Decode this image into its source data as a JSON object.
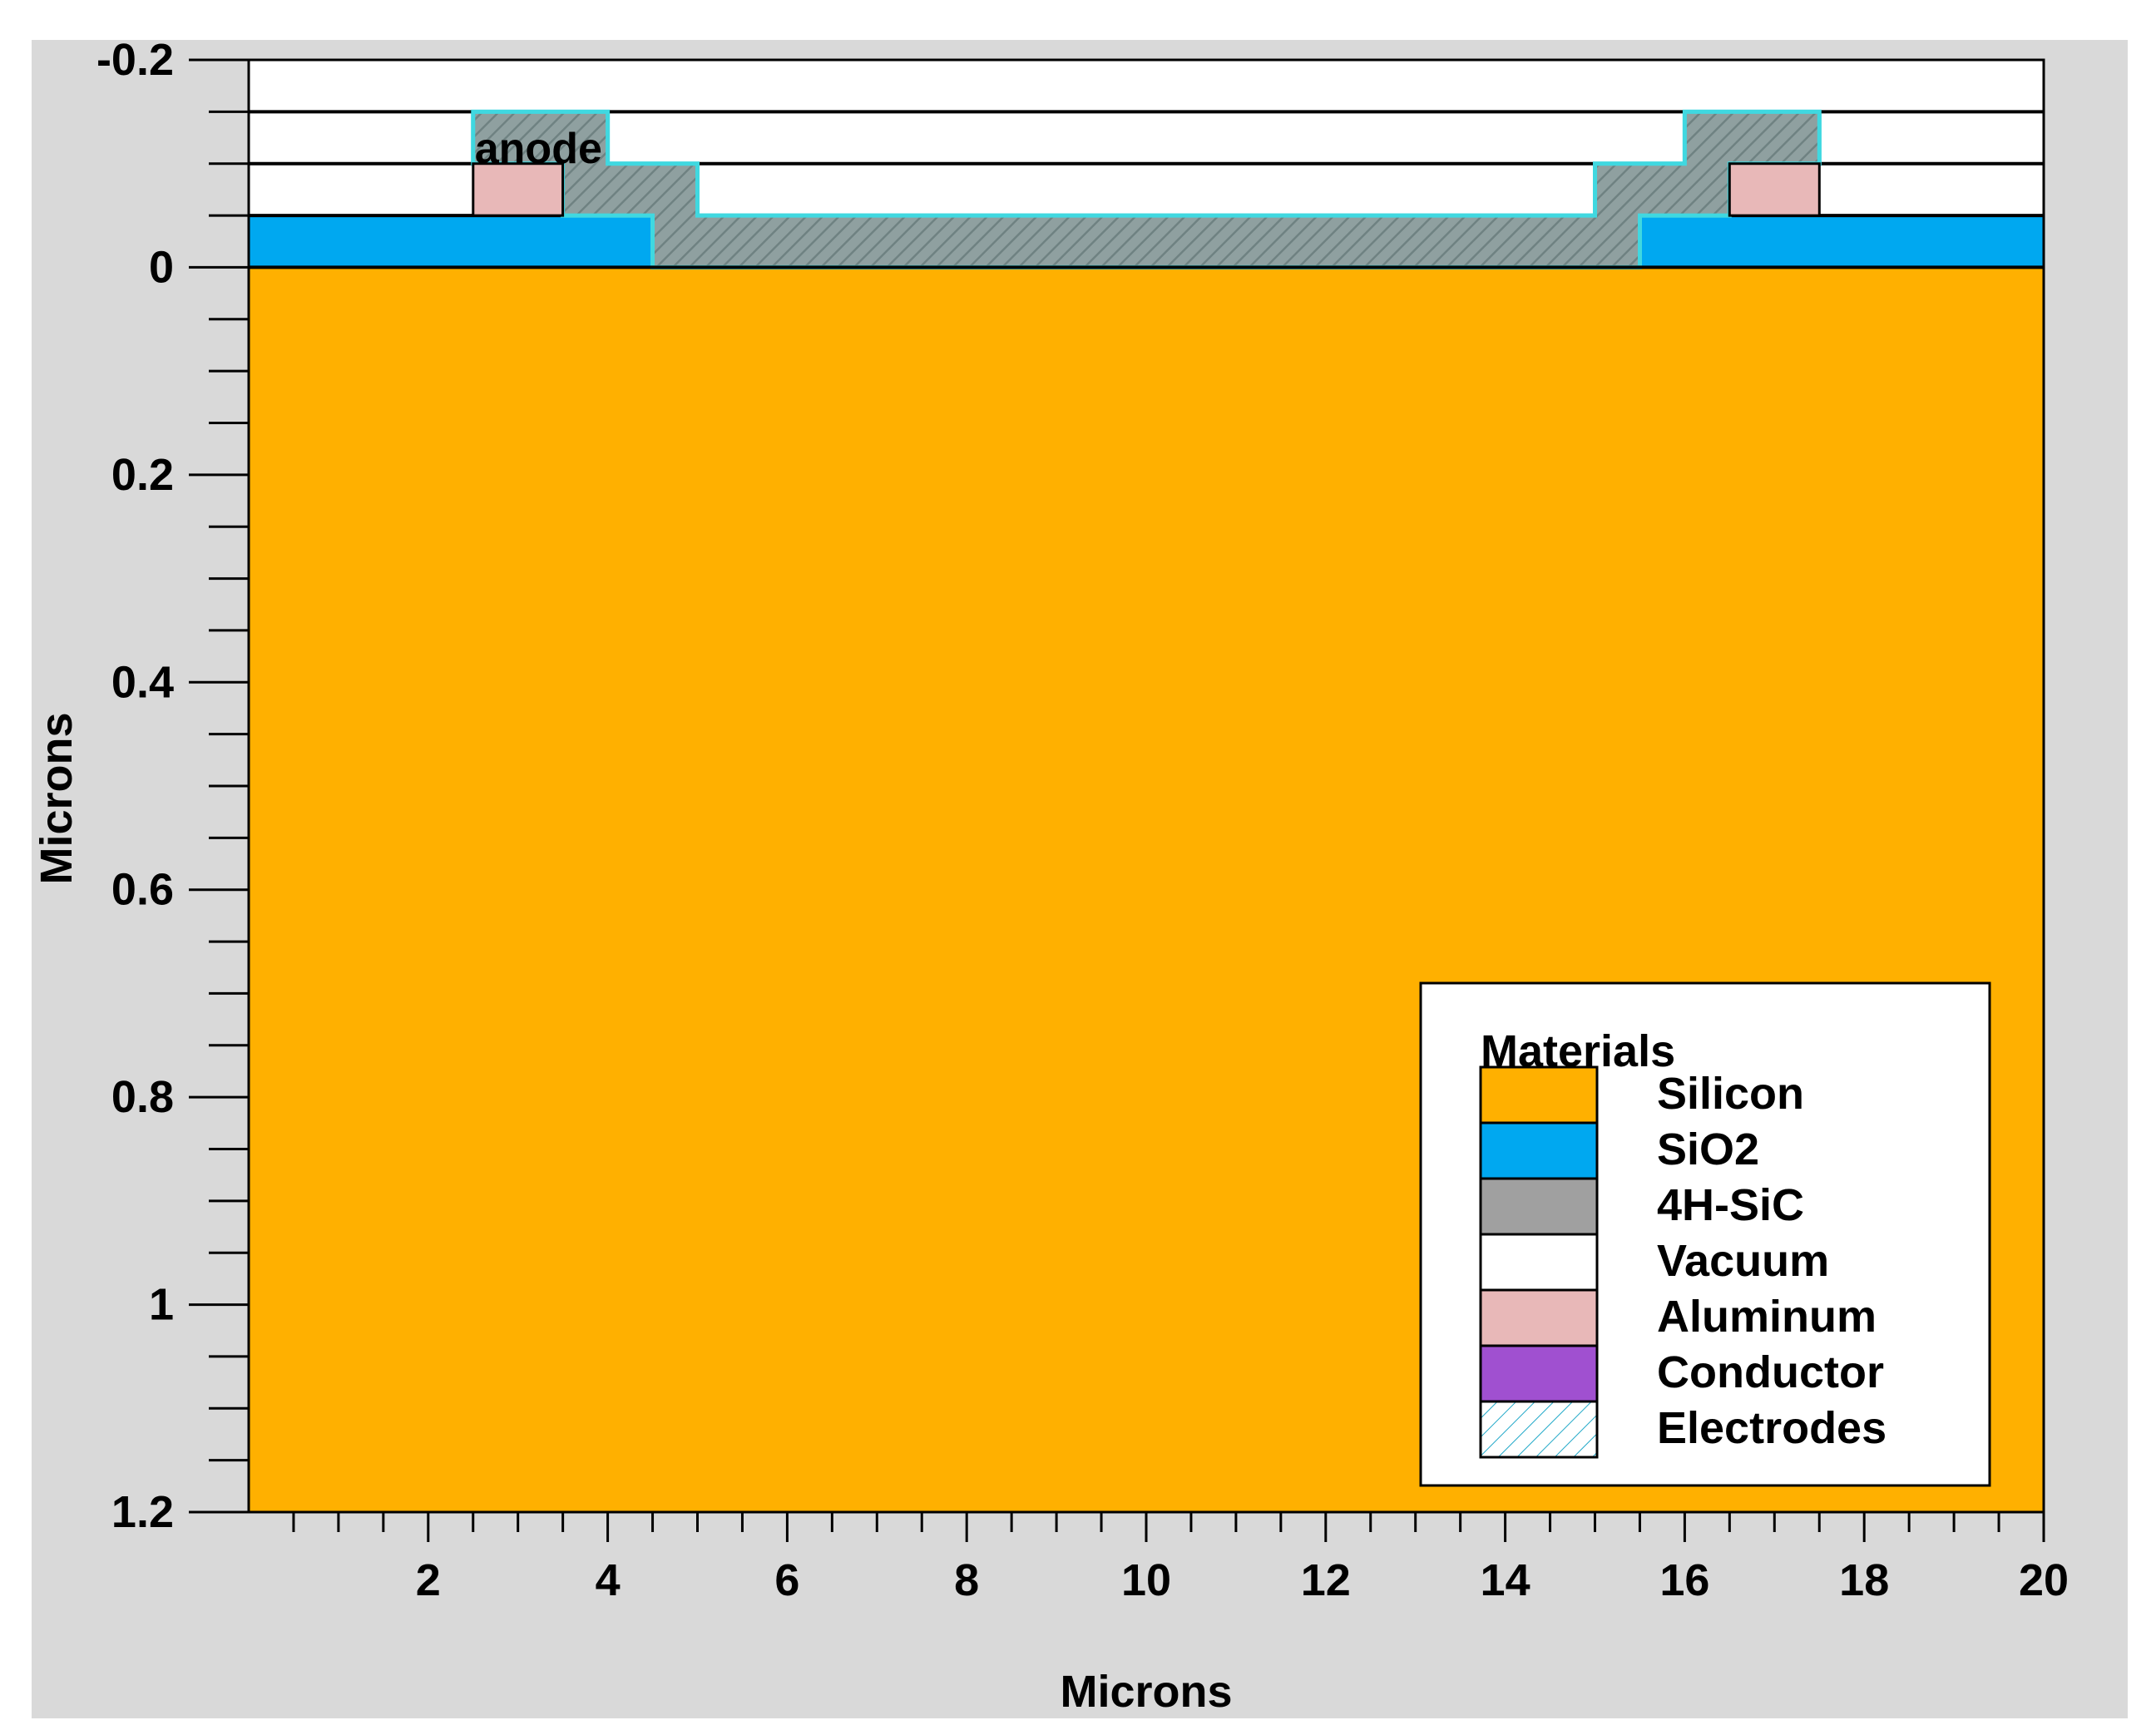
{
  "chart_data": {
    "type": "device-cross-section",
    "xlabel": "Microns",
    "ylabel": "Microns",
    "xlim": [
      0,
      20
    ],
    "ylim": [
      -0.2,
      1.2
    ],
    "x_ticks": [
      2,
      4,
      6,
      8,
      10,
      12,
      14,
      16,
      18,
      20
    ],
    "x_tick_labels": [
      "2",
      "4",
      "6",
      "8",
      "10",
      "12",
      "14",
      "16",
      "18",
      "20"
    ],
    "y_ticks": [
      -0.2,
      0,
      0.2,
      0.4,
      0.6,
      0.8,
      1,
      1.2
    ],
    "y_tick_labels": [
      "-0.2",
      "0",
      "0.2",
      "0.4",
      "0.6",
      "0.8",
      "1",
      "1.2"
    ],
    "annotation": {
      "text": "anode",
      "x": 2.5,
      "y": -0.115
    },
    "legend": {
      "title": "Materials",
      "placement": "bottom-right",
      "items": [
        {
          "label": "Silicon",
          "color": "#ffb000"
        },
        {
          "label": "SiO2",
          "color": "#00a8f0"
        },
        {
          "label": "4H-SiC",
          "color": "#a0a0a0"
        },
        {
          "label": "Vacuum",
          "color": "#ffffff"
        },
        {
          "label": "Aluminum",
          "color": "#e8b8b8"
        },
        {
          "label": "Conductor",
          "color": "#a050d0"
        },
        {
          "label": "Electrodes",
          "color": "hatch"
        }
      ]
    },
    "regions": [
      {
        "material": "Vacuum",
        "points": [
          [
            0,
            -0.2
          ],
          [
            20,
            -0.2
          ],
          [
            20,
            0
          ],
          [
            0,
            0
          ]
        ]
      },
      {
        "material": "Silicon",
        "points": [
          [
            0,
            0
          ],
          [
            20,
            0
          ],
          [
            20,
            1.2
          ],
          [
            0,
            1.2
          ]
        ]
      },
      {
        "material": "SiO2",
        "points": [
          [
            0,
            -0.05
          ],
          [
            4.5,
            -0.05
          ],
          [
            4.5,
            0
          ],
          [
            0,
            0
          ]
        ]
      },
      {
        "material": "SiO2",
        "points": [
          [
            15.5,
            -0.05
          ],
          [
            20,
            -0.05
          ],
          [
            20,
            0
          ],
          [
            15.5,
            0
          ]
        ]
      },
      {
        "material": "Aluminum",
        "points": [
          [
            2.5,
            -0.1
          ],
          [
            3.5,
            -0.1
          ],
          [
            3.5,
            -0.05
          ],
          [
            2.5,
            -0.05
          ]
        ]
      },
      {
        "material": "Aluminum",
        "points": [
          [
            16.5,
            -0.1
          ],
          [
            17.5,
            -0.1
          ],
          [
            17.5,
            -0.05
          ],
          [
            16.5,
            -0.05
          ]
        ]
      },
      {
        "material": "4H-SiC",
        "electrode": true,
        "points": [
          [
            2.5,
            -0.15
          ],
          [
            4,
            -0.15
          ],
          [
            4,
            -0.1
          ],
          [
            5,
            -0.1
          ],
          [
            5,
            -0.05
          ],
          [
            15,
            -0.05
          ],
          [
            15,
            -0.1
          ],
          [
            16,
            -0.1
          ],
          [
            16,
            -0.15
          ],
          [
            17.5,
            -0.15
          ],
          [
            17.5,
            -0.1
          ],
          [
            16.5,
            -0.1
          ],
          [
            16.5,
            -0.05
          ],
          [
            15.5,
            -0.05
          ],
          [
            15.5,
            0
          ],
          [
            4.5,
            0
          ],
          [
            4.5,
            -0.05
          ],
          [
            3.5,
            -0.05
          ],
          [
            3.5,
            -0.1
          ],
          [
            2.5,
            -0.1
          ]
        ]
      }
    ],
    "boundary_lines_y": [
      -0.05,
      -0.1,
      -0.15
    ]
  }
}
